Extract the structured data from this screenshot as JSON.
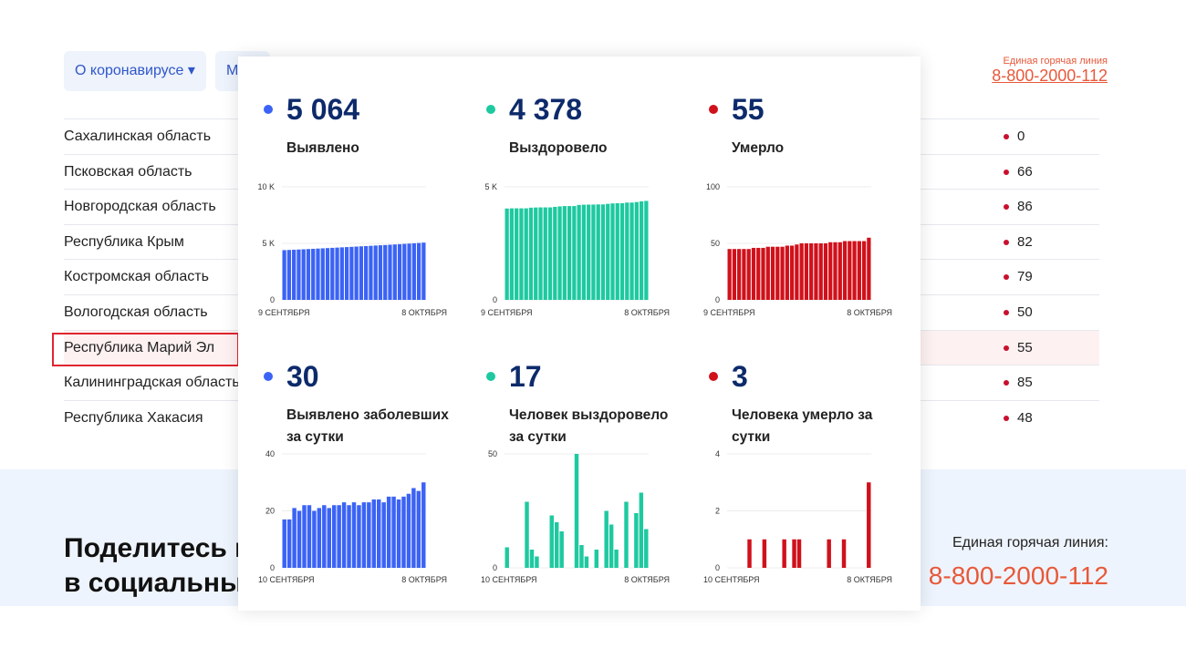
{
  "header": {
    "nav": [
      "О коронавирусе ▾",
      "М"
    ],
    "hotline_label": "Единая горячая линия",
    "hotline_phone": "8-800-2000-112"
  },
  "table": {
    "rows": [
      [
        "Сахалинская область",
        0
      ],
      [
        "Псковская область",
        66
      ],
      [
        "Новгородская область",
        86
      ],
      [
        "Республика Крым",
        82
      ],
      [
        "Костромская область",
        79
      ],
      [
        "Вологодская область",
        50
      ],
      [
        "Республика Марий Эл",
        55
      ],
      [
        "Калининградская область",
        85
      ],
      [
        "Республика Хакасия",
        48
      ]
    ]
  },
  "footer": {
    "share_title": [
      "Поделитесь новостью",
      "в социальных сетях"
    ],
    "hotline_label": "Единая горячая линия:",
    "hotline_phone": "8-800-2000-112"
  },
  "chart_data": [
    {
      "type": "bar",
      "headline": "5 064",
      "title": "Выявлено",
      "color": "#3b63f5",
      "categories": [
        "9 СЕНТЯБРЯ",
        null,
        null,
        null,
        null,
        null,
        null,
        null,
        null,
        null,
        null,
        null,
        null,
        null,
        null,
        null,
        null,
        null,
        null,
        null,
        null,
        null,
        null,
        null,
        null,
        null,
        null,
        null,
        null,
        "8 ОКТЯБРЯ"
      ],
      "values": [
        4400,
        4417,
        4434,
        4455,
        4475,
        4497,
        4519,
        4539,
        4560,
        4582,
        4603,
        4625,
        4647,
        4670,
        4692,
        4715,
        4737,
        4760,
        4783,
        4807,
        4831,
        4854,
        4879,
        4904,
        4928,
        4953,
        4979,
        5007,
        5034,
        5064
      ],
      "ylim": [
        0,
        10000
      ],
      "yticks": [
        0,
        {
          "value": 5000,
          "label": "5 K"
        },
        {
          "value": 10000,
          "label": "10 K"
        }
      ],
      "grid": true
    },
    {
      "type": "bar",
      "headline": "4 378",
      "title": "Выздоровело",
      "color": "#1ec9a0",
      "categories": [
        "9 СЕНТЯБРЯ",
        null,
        null,
        null,
        null,
        null,
        null,
        null,
        null,
        null,
        null,
        null,
        null,
        null,
        null,
        null,
        null,
        null,
        null,
        null,
        null,
        null,
        null,
        null,
        null,
        null,
        null,
        null,
        null,
        "8 ОКТЯБРЯ"
      ],
      "values": [
        4040,
        4049,
        4049,
        4049,
        4049,
        4078,
        4086,
        4091,
        4091,
        4091,
        4114,
        4134,
        4150,
        4150,
        4150,
        4200,
        4210,
        4215,
        4215,
        4223,
        4223,
        4248,
        4267,
        4275,
        4275,
        4304,
        4304,
        4328,
        4361,
        4378
      ],
      "ylim": [
        0,
        5000
      ],
      "yticks": [
        0,
        {
          "value": 5000,
          "label": "5 K"
        }
      ],
      "grid": true
    },
    {
      "type": "bar",
      "headline": "55",
      "title": "Умерло",
      "color": "#d0111b",
      "categories": [
        "9 СЕНТЯБРЯ",
        null,
        null,
        null,
        null,
        null,
        null,
        null,
        null,
        null,
        null,
        null,
        null,
        null,
        null,
        null,
        null,
        null,
        null,
        null,
        null,
        null,
        null,
        null,
        null,
        null,
        null,
        null,
        null,
        "8 ОКТЯБРЯ"
      ],
      "values": [
        45,
        45,
        45,
        45,
        45,
        46,
        46,
        46,
        47,
        47,
        47,
        47,
        48,
        48,
        49,
        50,
        50,
        50,
        50,
        50,
        50,
        51,
        51,
        51,
        52,
        52,
        52,
        52,
        52,
        55
      ],
      "ylim": [
        0,
        100
      ],
      "yticks": [
        0,
        50,
        100
      ],
      "grid": true
    },
    {
      "type": "bar",
      "headline": "30",
      "title": "Выявлено заболевших за сутки",
      "color": "#3b63f5",
      "categories": [
        "10 СЕНТЯБРЯ",
        null,
        null,
        null,
        null,
        null,
        null,
        null,
        null,
        null,
        null,
        null,
        null,
        null,
        null,
        null,
        null,
        null,
        null,
        null,
        null,
        null,
        null,
        null,
        null,
        null,
        null,
        null,
        "8 ОКТЯБРЯ"
      ],
      "values": [
        17,
        17,
        21,
        20,
        22,
        22,
        20,
        21,
        22,
        21,
        22,
        22,
        23,
        22,
        23,
        22,
        23,
        23,
        24,
        24,
        23,
        25,
        25,
        24,
        25,
        26,
        28,
        27,
        30
      ],
      "ylim": [
        0,
        40
      ],
      "yticks": [
        0,
        20,
        40
      ],
      "grid": true
    },
    {
      "type": "bar",
      "headline": "17",
      "title": "Человек выздоровело за сутки",
      "color": "#1ec9a0",
      "categories": [
        "10 СЕНТЯБРЯ",
        null,
        null,
        null,
        null,
        null,
        null,
        null,
        null,
        null,
        null,
        null,
        null,
        null,
        null,
        null,
        null,
        null,
        null,
        null,
        null,
        null,
        null,
        null,
        null,
        null,
        null,
        null,
        "8 ОКТЯБРЯ"
      ],
      "values": [
        9,
        0,
        0,
        0,
        29,
        8,
        5,
        0,
        0,
        23,
        20,
        16,
        0,
        0,
        50,
        10,
        5,
        0,
        8,
        0,
        25,
        19,
        8,
        0,
        29,
        0,
        24,
        33,
        17
      ],
      "ylim": [
        0,
        50
      ],
      "yticks": [
        0,
        50
      ],
      "grid": true
    },
    {
      "type": "bar",
      "headline": "3",
      "title": "Человека умерло за сутки",
      "color": "#d0111b",
      "categories": [
        "10 СЕНТЯБРЯ",
        null,
        null,
        null,
        null,
        null,
        null,
        null,
        null,
        null,
        null,
        null,
        null,
        null,
        null,
        null,
        null,
        null,
        null,
        null,
        null,
        null,
        null,
        null,
        null,
        null,
        null,
        null,
        "8 ОКТЯБРЯ"
      ],
      "values": [
        0,
        0,
        0,
        0,
        1,
        0,
        0,
        1,
        0,
        0,
        0,
        1,
        0,
        1,
        1,
        0,
        0,
        0,
        0,
        0,
        1,
        0,
        0,
        1,
        0,
        0,
        0,
        0,
        3
      ],
      "ylim": [
        0,
        4
      ],
      "yticks": [
        0,
        2,
        4
      ],
      "grid": true
    }
  ]
}
